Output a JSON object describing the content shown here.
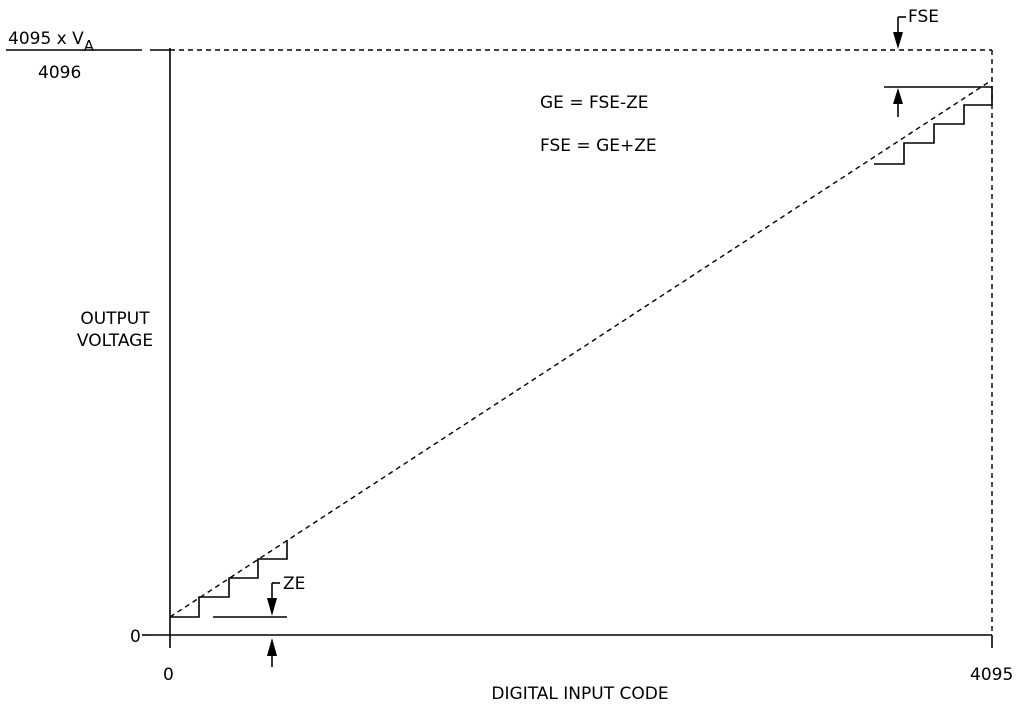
{
  "y_top_label": {
    "numerator_prefix": "4095 x V",
    "numerator_subscript": "A",
    "denominator": "4096"
  },
  "y_label": [
    "OUTPUT",
    "VOLTAGE"
  ],
  "y_zero": "0",
  "x_zero": "0",
  "x_max": "4095",
  "x_label": "DIGITAL INPUT CODE",
  "equations": [
    "GE = FSE-ZE",
    "FSE = GE+ZE"
  ],
  "annotations": {
    "fse": "FSE",
    "ze": "ZE"
  }
}
